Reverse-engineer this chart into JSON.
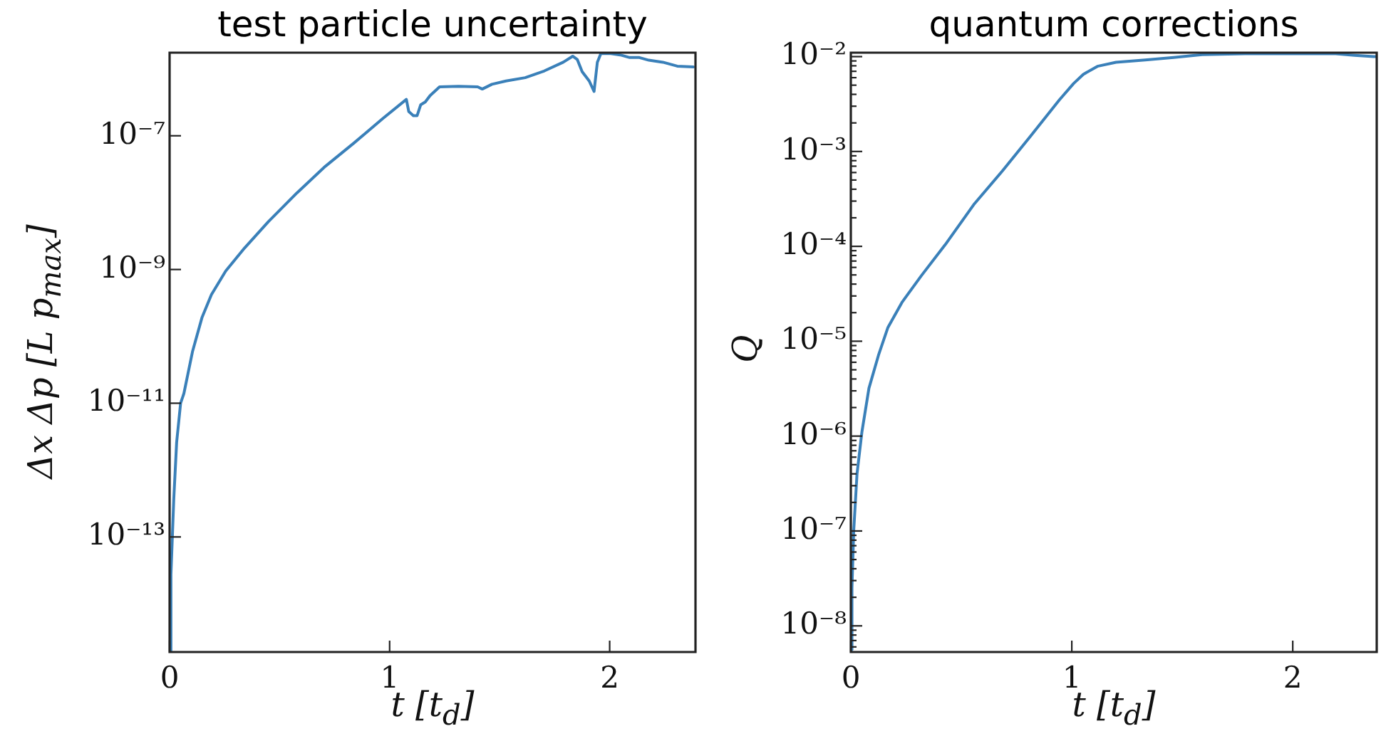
{
  "chart_data": [
    {
      "type": "line",
      "title": "test particle uncertainty",
      "xlabel": "t [t$_{d}$]",
      "ylabel": "Δx Δp [L p$_{max}$]",
      "log": "y",
      "x": [
        0,
        0.006,
        0.019,
        0.032,
        0.05,
        0.065,
        0.104,
        0.147,
        0.19,
        0.255,
        0.341,
        0.449,
        0.579,
        0.708,
        0.838,
        0.968,
        1.076,
        1.087,
        1.108,
        1.125,
        1.141,
        1.162,
        1.184,
        1.227,
        1.313,
        1.4,
        1.421,
        1.465,
        1.529,
        1.616,
        1.702,
        1.789,
        1.832,
        1.853,
        1.875,
        1.907,
        1.929,
        1.944,
        1.96,
        2.005,
        2.048,
        2.091,
        2.135,
        2.178,
        2.242,
        2.307,
        2.38
      ],
      "series": [
        {
          "color": "#3a80b9",
          "values": [
            2e-15,
            2.7e-14,
            3.7e-13,
            2.6e-12,
            1e-11,
            1.4e-11,
            5.9e-11,
            1.9e-10,
            4.2e-10,
            9.5e-10,
            2.1e-09,
            5.2e-09,
            1.4e-08,
            3.5e-08,
            7.8e-08,
            1.8e-07,
            3.5e-07,
            2.3e-07,
            2e-07,
            2e-07,
            2.9e-07,
            3.2e-07,
            4e-07,
            5.4e-07,
            5.5e-07,
            5.4e-07,
            5e-07,
            5.9e-07,
            6.6e-07,
            7.4e-07,
            9.3e-07,
            1.26e-06,
            1.55e-06,
            1.38e-06,
            9.1e-07,
            6.6e-07,
            4.6e-07,
            1.26e-06,
            1.7e-06,
            1.7e-06,
            1.62e-06,
            1.48e-06,
            1.48e-06,
            1.35e-06,
            1.26e-06,
            1.1e-06,
            1.07e-06
          ]
        }
      ],
      "xlim": [
        0,
        2.39
      ],
      "xticks": [
        0,
        1,
        2
      ],
      "ylim": [
        1.9e-15,
        1.75e-06
      ],
      "yticks": [
        {
          "value": 1e-13,
          "label": "10⁻¹³"
        },
        {
          "value": 1e-11,
          "label": "10⁻¹¹"
        },
        {
          "value": 1e-09,
          "label": "10⁻⁹"
        },
        {
          "value": 1e-07,
          "label": "10⁻⁷"
        }
      ]
    },
    {
      "type": "line",
      "title": "quantum corrections",
      "xlabel": "t [t$_{d}$]",
      "ylabel": "Q",
      "log": "y",
      "x": [
        0,
        0.005,
        0.013,
        0.028,
        0.05,
        0.082,
        0.125,
        0.168,
        0.233,
        0.319,
        0.427,
        0.556,
        0.685,
        0.814,
        0.944,
        1.008,
        1.052,
        1.116,
        1.2,
        1.332,
        1.461,
        1.59,
        1.784,
        2.0,
        2.194,
        2.28,
        2.366,
        2.38
      ],
      "series": [
        {
          "color": "#3a80b9",
          "values": [
            5.6e-09,
            2.5e-08,
            1e-07,
            4e-07,
            1.1e-06,
            3.2e-06,
            7.1e-06,
            1.4e-05,
            2.6e-05,
            4.9e-05,
            0.000104,
            0.000275,
            0.00062,
            0.00146,
            0.0035,
            0.0052,
            0.0065,
            0.0079,
            0.0087,
            0.0092,
            0.0098,
            0.0105,
            0.0107,
            0.0107,
            0.0107,
            0.0103,
            0.01,
            0.01
          ]
        }
      ],
      "xlim": [
        0,
        2.38
      ],
      "xticks": [
        0,
        1,
        2
      ],
      "ylim": [
        5.3e-09,
        0.011
      ],
      "yticks": [
        {
          "value": 6e-09,
          "label": null
        },
        {
          "value": 7e-09,
          "label": null
        },
        {
          "value": 8e-09,
          "label": null
        },
        {
          "value": 9e-09,
          "label": null
        },
        {
          "value": 1e-08,
          "label": "10⁻⁸"
        },
        {
          "value": 2e-08,
          "label": null
        },
        {
          "value": 3e-08,
          "label": null
        },
        {
          "value": 4e-08,
          "label": null
        },
        {
          "value": 5e-08,
          "label": null
        },
        {
          "value": 6e-08,
          "label": null
        },
        {
          "value": 7e-08,
          "label": null
        },
        {
          "value": 8e-08,
          "label": null
        },
        {
          "value": 9e-08,
          "label": null
        },
        {
          "value": 1e-07,
          "label": "10⁻⁷"
        },
        {
          "value": 2e-07,
          "label": null
        },
        {
          "value": 3e-07,
          "label": null
        },
        {
          "value": 4e-07,
          "label": null
        },
        {
          "value": 5e-07,
          "label": null
        },
        {
          "value": 6e-07,
          "label": null
        },
        {
          "value": 7e-07,
          "label": null
        },
        {
          "value": 8e-07,
          "label": null
        },
        {
          "value": 9e-07,
          "label": null
        },
        {
          "value": 1e-06,
          "label": "10⁻⁶"
        },
        {
          "value": 2e-06,
          "label": null
        },
        {
          "value": 3e-06,
          "label": null
        },
        {
          "value": 4e-06,
          "label": null
        },
        {
          "value": 5e-06,
          "label": null
        },
        {
          "value": 6e-06,
          "label": null
        },
        {
          "value": 7e-06,
          "label": null
        },
        {
          "value": 8e-06,
          "label": null
        },
        {
          "value": 9e-06,
          "label": null
        },
        {
          "value": 1e-05,
          "label": "10⁻⁵"
        },
        {
          "value": 2e-05,
          "label": null
        },
        {
          "value": 3e-05,
          "label": null
        },
        {
          "value": 4e-05,
          "label": null
        },
        {
          "value": 5e-05,
          "label": null
        },
        {
          "value": 6e-05,
          "label": null
        },
        {
          "value": 7e-05,
          "label": null
        },
        {
          "value": 8e-05,
          "label": null
        },
        {
          "value": 9e-05,
          "label": null
        },
        {
          "value": 0.0001,
          "label": "10⁻⁴"
        },
        {
          "value": 0.0002,
          "label": null
        },
        {
          "value": 0.0003,
          "label": null
        },
        {
          "value": 0.0004,
          "label": null
        },
        {
          "value": 0.0005,
          "label": null
        },
        {
          "value": 0.0006,
          "label": null
        },
        {
          "value": 0.0007,
          "label": null
        },
        {
          "value": 0.0008,
          "label": null
        },
        {
          "value": 0.0009,
          "label": null
        },
        {
          "value": 0.001,
          "label": "10⁻³"
        },
        {
          "value": 0.002,
          "label": null
        },
        {
          "value": 0.003,
          "label": null
        },
        {
          "value": 0.004,
          "label": null
        },
        {
          "value": 0.005,
          "label": null
        },
        {
          "value": 0.006,
          "label": null
        },
        {
          "value": 0.007,
          "label": null
        },
        {
          "value": 0.008,
          "label": null
        },
        {
          "value": 0.009,
          "label": null
        },
        {
          "value": 0.01,
          "label": "10⁻²"
        }
      ]
    }
  ]
}
